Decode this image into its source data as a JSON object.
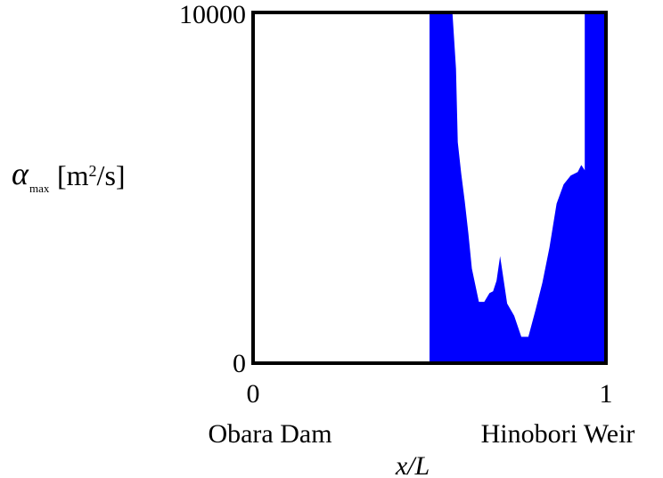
{
  "chart_data": {
    "type": "area",
    "ylabel": {
      "symbol": "α",
      "subscript": "max",
      "unit_prefix": "[m",
      "unit_sup": "2",
      "unit_suffix": "/s]"
    },
    "xlabel": "x/L",
    "xlim": [
      0,
      1
    ],
    "ylim": [
      0,
      10000
    ],
    "x_ticks": [
      "0",
      "1"
    ],
    "y_ticks": [
      "10000",
      "0"
    ],
    "x_endpoint_labels": [
      "Obara Dam",
      "Hinobori Weir"
    ],
    "fill_color": "#0000ff",
    "grid": false,
    "series": [
      {
        "x": [
          0.5,
          0.5,
          0.565,
          0.575,
          0.58,
          0.59,
          0.6,
          0.61,
          0.62,
          0.64,
          0.655,
          0.67,
          0.68,
          0.69,
          0.7,
          0.72,
          0.74,
          0.76,
          0.78,
          0.8,
          0.82,
          0.84,
          0.86,
          0.88,
          0.9,
          0.92,
          0.93,
          0.94,
          0.94,
          1.0,
          1.0
        ],
        "values": [
          0,
          10000,
          10000,
          8400,
          6300,
          5400,
          4600,
          3700,
          2700,
          1750,
          1750,
          2000,
          2050,
          2350,
          3050,
          1700,
          1350,
          750,
          750,
          1500,
          2300,
          3300,
          4550,
          5100,
          5350,
          5450,
          5650,
          5500,
          10000,
          10000,
          0
        ]
      }
    ]
  }
}
